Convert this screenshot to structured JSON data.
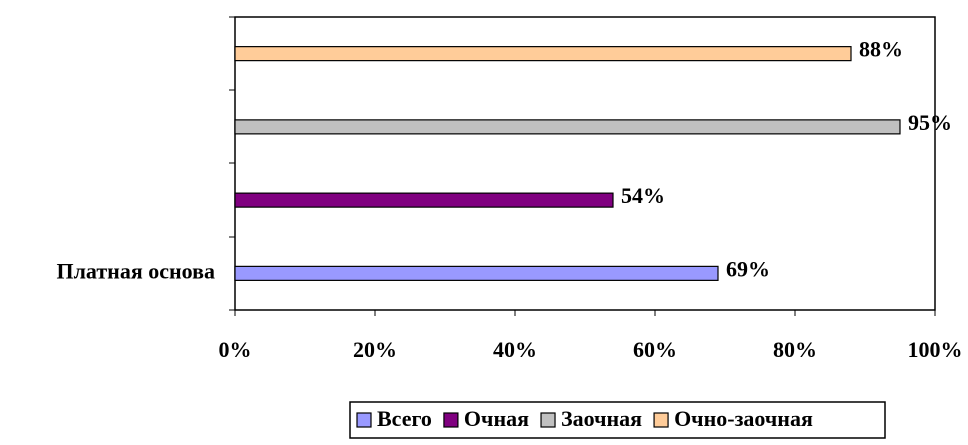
{
  "chart_data": {
    "type": "hbar",
    "categories": [
      "Платная основа"
    ],
    "series": [
      {
        "name": "Всего",
        "color": "#9999ff",
        "values": [
          69
        ],
        "value_labels": [
          "69%"
        ]
      },
      {
        "name": "Очная",
        "color": "#800080",
        "values": [
          54
        ],
        "value_labels": [
          "54%"
        ]
      },
      {
        "name": "Заочная",
        "color": "#c0c0c0",
        "values": [
          95
        ],
        "value_labels": [
          "95%"
        ]
      },
      {
        "name": "Очно-заочная",
        "color": "#ffcc99",
        "values": [
          88
        ],
        "value_labels": [
          "88%"
        ]
      }
    ],
    "xlim": [
      0,
      100
    ],
    "xticks": [
      {
        "value": 0,
        "label": "0%"
      },
      {
        "value": 20,
        "label": "20%"
      },
      {
        "value": 40,
        "label": "40%"
      },
      {
        "value": 60,
        "label": "60%"
      },
      {
        "value": 80,
        "label": "80%"
      },
      {
        "value": 100,
        "label": "100%"
      }
    ],
    "legend": "bottom"
  }
}
